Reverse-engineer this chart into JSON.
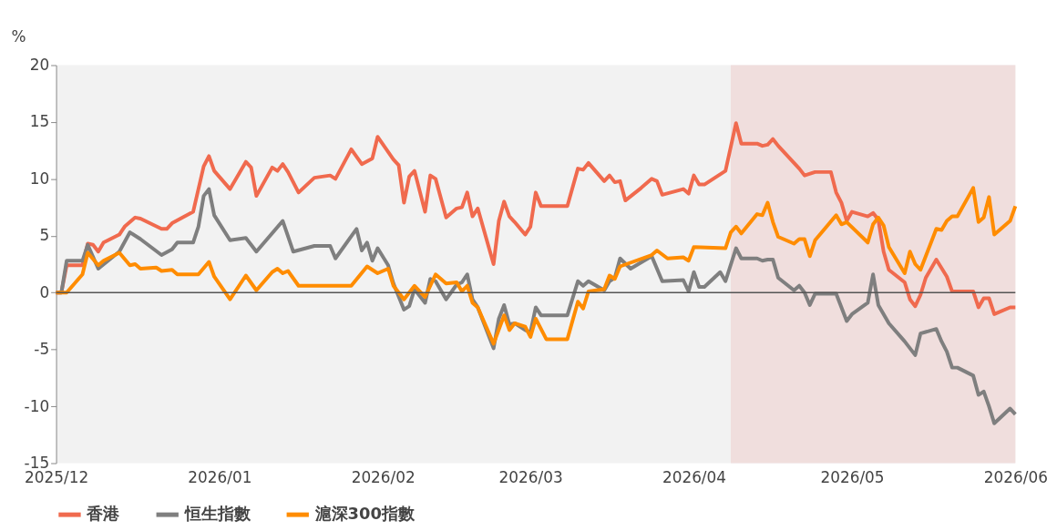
{
  "chart_data": {
    "type": "line",
    "ylabel": "%",
    "xlim": [
      "2025-12-01",
      "2026-06-01"
    ],
    "ylim": [
      -15,
      20
    ],
    "yticks": [
      -15,
      -10,
      -5,
      0,
      5,
      10,
      15,
      20
    ],
    "xticks": [
      {
        "value": "2025-12",
        "label": "2025/12"
      },
      {
        "value": "2026-01",
        "label": "2026/01"
      },
      {
        "value": "2026-02",
        "label": "2026/02"
      },
      {
        "value": "2026-03",
        "label": "2026/03"
      },
      {
        "value": "2026-04",
        "label": "2026/04"
      },
      {
        "value": "2026-05",
        "label": "2026/05"
      },
      {
        "value": "2026-06",
        "label": "2026/06"
      }
    ],
    "grid": false,
    "legend": "bottom",
    "line_style": "solid",
    "marker": "none",
    "bands": [
      {
        "axis": "x",
        "from": "2026-04-08",
        "to": "2026-06-01",
        "color": "#f0dedd"
      }
    ],
    "ref_lines": [
      {
        "axis": "y",
        "value": 0,
        "color": "#555555"
      }
    ],
    "series": [
      {
        "name": "香港",
        "color": "#f06a4e",
        "x": [
          "2025-12-01",
          "2025-12-02",
          "2025-12-03",
          "2025-12-06",
          "2025-12-07",
          "2025-12-08",
          "2025-12-09",
          "2025-12-10",
          "2025-12-13",
          "2025-12-14",
          "2025-12-16",
          "2025-12-17",
          "2025-12-21",
          "2025-12-22",
          "2025-12-23",
          "2025-12-27",
          "2025-12-29",
          "2025-12-30",
          "2025-12-31",
          "2026-01-03",
          "2026-01-06",
          "2026-01-07",
          "2026-01-08",
          "2026-01-11",
          "2026-01-12",
          "2026-01-13",
          "2026-01-14",
          "2026-01-16",
          "2026-01-19",
          "2026-01-22",
          "2026-01-23",
          "2026-01-26",
          "2026-01-28",
          "2026-01-30",
          "2026-01-31",
          "2026-02-03",
          "2026-02-04",
          "2026-02-05",
          "2026-02-06",
          "2026-02-07",
          "2026-02-09",
          "2026-02-10",
          "2026-02-11",
          "2026-02-13",
          "2026-02-15",
          "2026-02-16",
          "2026-02-17",
          "2026-02-18",
          "2026-02-19",
          "2026-02-22",
          "2026-02-23",
          "2026-02-24",
          "2026-02-25",
          "2026-02-26",
          "2026-02-28",
          "2026-03-01",
          "2026-03-02",
          "2026-03-03",
          "2026-03-08",
          "2026-03-10",
          "2026-03-11",
          "2026-03-12",
          "2026-03-15",
          "2026-03-16",
          "2026-03-17",
          "2026-03-18",
          "2026-03-19",
          "2026-03-22",
          "2026-03-24",
          "2026-03-25",
          "2026-03-26",
          "2026-03-30",
          "2026-03-31",
          "2026-04-01",
          "2026-04-02",
          "2026-04-03",
          "2026-04-06",
          "2026-04-07",
          "2026-04-09",
          "2026-04-10",
          "2026-04-13",
          "2026-04-14",
          "2026-04-15",
          "2026-04-16",
          "2026-04-17",
          "2026-04-21",
          "2026-04-22",
          "2026-04-24",
          "2026-04-27",
          "2026-04-28",
          "2026-04-29",
          "2026-04-30",
          "2026-05-01",
          "2026-05-04",
          "2026-05-05",
          "2026-05-06",
          "2026-05-07",
          "2026-05-08",
          "2026-05-11",
          "2026-05-12",
          "2026-05-13",
          "2026-05-14",
          "2026-05-15",
          "2026-05-17",
          "2026-05-19",
          "2026-05-20",
          "2026-05-24",
          "2026-05-25",
          "2026-05-26",
          "2026-05-27",
          "2026-05-28",
          "2026-05-31",
          "2026-06-01"
        ],
        "values": [
          0,
          0,
          2.4,
          2.4,
          4.3,
          4.2,
          3.6,
          4.4,
          5.1,
          5.8,
          6.6,
          6.5,
          5.6,
          5.6,
          6.1,
          7.1,
          11.1,
          12.0,
          10.7,
          9.1,
          11.5,
          11.0,
          8.5,
          11.0,
          10.7,
          11.3,
          10.6,
          8.8,
          10.1,
          10.3,
          10.0,
          12.6,
          11.3,
          11.8,
          13.7,
          11.7,
          11.2,
          7.9,
          10.2,
          10.7,
          7.1,
          10.3,
          10.0,
          6.6,
          7.4,
          7.5,
          8.8,
          6.7,
          7.4,
          2.5,
          6.3,
          8.0,
          6.7,
          6.2,
          5.1,
          5.8,
          8.8,
          7.6,
          7.6,
          10.9,
          10.8,
          11.4,
          9.8,
          10.3,
          9.7,
          9.8,
          8.1,
          9.2,
          10.0,
          9.8,
          8.6,
          9.1,
          8.7,
          10.3,
          9.5,
          9.5,
          10.4,
          10.7,
          14.9,
          13.1,
          13.1,
          12.9,
          13.0,
          13.5,
          12.9,
          10.9,
          10.3,
          10.6,
          10.6,
          8.8,
          7.9,
          6.3,
          7.1,
          6.7,
          7.0,
          6.4,
          3.6,
          2.0,
          0.9,
          -0.6,
          -1.2,
          -0.2,
          1.3,
          2.9,
          1.4,
          0.1,
          0.1,
          -1.3,
          -0.5,
          -0.5,
          -1.9,
          -1.3,
          -1.3
        ]
      },
      {
        "name": "恒生指數",
        "color": "#7f7f7f",
        "x": [
          "2025-12-01",
          "2025-12-02",
          "2025-12-03",
          "2025-12-06",
          "2025-12-07",
          "2025-12-09",
          "2025-12-13",
          "2025-12-15",
          "2025-12-17",
          "2025-12-21",
          "2025-12-23",
          "2025-12-24",
          "2025-12-27",
          "2025-12-28",
          "2025-12-29",
          "2025-12-30",
          "2025-12-31",
          "2026-01-03",
          "2026-01-06",
          "2026-01-08",
          "2026-01-13",
          "2026-01-15",
          "2026-01-19",
          "2026-01-22",
          "2026-01-23",
          "2026-01-27",
          "2026-01-28",
          "2026-01-29",
          "2026-01-30",
          "2026-01-31",
          "2026-02-02",
          "2026-02-03",
          "2026-02-05",
          "2026-02-06",
          "2026-02-07",
          "2026-02-09",
          "2026-02-10",
          "2026-02-11",
          "2026-02-13",
          "2026-02-15",
          "2026-02-16",
          "2026-02-17",
          "2026-02-18",
          "2026-02-19",
          "2026-02-22",
          "2026-02-23",
          "2026-02-24",
          "2026-02-25",
          "2026-02-26",
          "2026-02-28",
          "2026-03-01",
          "2026-03-02",
          "2026-03-03",
          "2026-03-08",
          "2026-03-10",
          "2026-03-11",
          "2026-03-12",
          "2026-03-15",
          "2026-03-16",
          "2026-03-17",
          "2026-03-18",
          "2026-03-20",
          "2026-03-24",
          "2026-03-26",
          "2026-03-30",
          "2026-03-31",
          "2026-04-01",
          "2026-04-02",
          "2026-04-03",
          "2026-04-06",
          "2026-04-07",
          "2026-04-09",
          "2026-04-10",
          "2026-04-13",
          "2026-04-14",
          "2026-04-15",
          "2026-04-16",
          "2026-04-17",
          "2026-04-20",
          "2026-04-21",
          "2026-04-22",
          "2026-04-23",
          "2026-04-24",
          "2026-04-28",
          "2026-04-29",
          "2026-04-30",
          "2026-05-01",
          "2026-05-04",
          "2026-05-05",
          "2026-05-06",
          "2026-05-08",
          "2026-05-11",
          "2026-05-13",
          "2026-05-14",
          "2026-05-17",
          "2026-05-18",
          "2026-05-19",
          "2026-05-20",
          "2026-05-21",
          "2026-05-24",
          "2026-05-25",
          "2026-05-26",
          "2026-05-27",
          "2026-05-28",
          "2026-05-31",
          "2026-06-01"
        ],
        "values": [
          0,
          0,
          2.8,
          2.8,
          4.2,
          2.1,
          3.6,
          5.3,
          4.7,
          3.3,
          3.8,
          4.4,
          4.4,
          5.8,
          8.5,
          9.1,
          6.8,
          4.6,
          4.8,
          3.6,
          6.3,
          3.6,
          4.1,
          4.1,
          3.0,
          5.6,
          3.7,
          4.4,
          2.8,
          3.9,
          2.4,
          0.8,
          -1.5,
          -1.2,
          0.3,
          -0.9,
          1.2,
          1.0,
          -0.6,
          0.7,
          0.9,
          1.6,
          -0.6,
          -1.3,
          -4.9,
          -2.3,
          -1.1,
          -2.8,
          -2.7,
          -3.3,
          -3.5,
          -1.3,
          -2.0,
          -2.0,
          1.0,
          0.6,
          1.0,
          0.2,
          1.0,
          1.3,
          3.0,
          2.1,
          3.2,
          1.0,
          1.1,
          0.1,
          1.8,
          0.5,
          0.5,
          1.8,
          1.0,
          3.9,
          3.0,
          3.0,
          2.8,
          2.9,
          2.9,
          1.3,
          0.2,
          0.6,
          0.0,
          -1.1,
          -0.1,
          -0.1,
          -1.3,
          -2.5,
          -1.9,
          -0.9,
          1.6,
          -1.1,
          -2.7,
          -4.3,
          -5.5,
          -3.6,
          -3.2,
          -4.3,
          -5.2,
          -6.6,
          -6.6,
          -7.3,
          -9.0,
          -8.7,
          -10.0,
          -11.5,
          -10.2,
          -10.7
        ]
      },
      {
        "name": "滬深300指數",
        "color": "#ff8c00",
        "x": [
          "2025-12-01",
          "2025-12-03",
          "2025-12-06",
          "2025-12-07",
          "2025-12-09",
          "2025-12-10",
          "2025-12-13",
          "2025-12-15",
          "2025-12-16",
          "2025-12-17",
          "2025-12-20",
          "2025-12-21",
          "2025-12-23",
          "2025-12-24",
          "2025-12-28",
          "2025-12-30",
          "2025-12-31",
          "2026-01-03",
          "2026-01-06",
          "2026-01-08",
          "2026-01-11",
          "2026-01-12",
          "2026-01-13",
          "2026-01-14",
          "2026-01-16",
          "2026-01-26",
          "2026-01-29",
          "2026-01-31",
          "2026-02-02",
          "2026-02-03",
          "2026-02-05",
          "2026-02-07",
          "2026-02-09",
          "2026-02-11",
          "2026-02-13",
          "2026-02-15",
          "2026-02-16",
          "2026-02-17",
          "2026-02-18",
          "2026-02-19",
          "2026-02-22",
          "2026-02-24",
          "2026-02-25",
          "2026-02-26",
          "2026-02-28",
          "2026-03-01",
          "2026-03-02",
          "2026-03-04",
          "2026-03-08",
          "2026-03-10",
          "2026-03-11",
          "2026-03-12",
          "2026-03-15",
          "2026-03-16",
          "2026-03-17",
          "2026-03-18",
          "2026-03-24",
          "2026-03-25",
          "2026-03-27",
          "2026-03-30",
          "2026-03-31",
          "2026-04-01",
          "2026-04-07",
          "2026-04-08",
          "2026-04-09",
          "2026-04-10",
          "2026-04-13",
          "2026-04-14",
          "2026-04-15",
          "2026-04-16",
          "2026-04-17",
          "2026-04-20",
          "2026-04-21",
          "2026-04-22",
          "2026-04-23",
          "2026-04-24",
          "2026-04-28",
          "2026-04-29",
          "2026-04-30",
          "2026-05-04",
          "2026-05-05",
          "2026-05-06",
          "2026-05-07",
          "2026-05-08",
          "2026-05-11",
          "2026-05-12",
          "2026-05-13",
          "2026-05-14",
          "2026-05-15",
          "2026-05-17",
          "2026-05-18",
          "2026-05-19",
          "2026-05-20",
          "2026-05-21",
          "2026-05-24",
          "2026-05-25",
          "2026-05-26",
          "2026-05-27",
          "2026-05-28",
          "2026-05-31",
          "2026-06-01"
        ],
        "values": [
          0,
          0,
          1.6,
          3.5,
          2.4,
          2.8,
          3.5,
          2.4,
          2.5,
          2.1,
          2.2,
          1.9,
          2.0,
          1.6,
          1.6,
          2.7,
          1.4,
          -0.6,
          1.5,
          0.2,
          1.8,
          2.1,
          1.7,
          1.9,
          0.6,
          0.6,
          2.3,
          1.7,
          2.1,
          0.6,
          -0.6,
          0.6,
          -0.4,
          1.6,
          0.8,
          0.9,
          0.1,
          0.6,
          -0.9,
          -1.3,
          -4.5,
          -2.0,
          -3.3,
          -2.7,
          -3.0,
          -3.9,
          -2.3,
          -4.1,
          -4.1,
          -0.8,
          -1.4,
          0.1,
          0.3,
          1.5,
          1.2,
          2.3,
          3.3,
          3.7,
          3.0,
          3.1,
          2.8,
          4.0,
          3.9,
          5.3,
          5.8,
          5.2,
          6.9,
          6.8,
          7.9,
          6.2,
          4.9,
          4.3,
          4.7,
          4.7,
          3.2,
          4.6,
          6.8,
          6.0,
          6.2,
          4.4,
          6.0,
          6.6,
          5.9,
          4.0,
          1.7,
          3.6,
          2.5,
          2.0,
          3.2,
          5.6,
          5.5,
          6.3,
          6.7,
          6.7,
          9.2,
          6.2,
          6.6,
          8.4,
          5.1,
          6.3,
          7.6
        ]
      }
    ]
  }
}
